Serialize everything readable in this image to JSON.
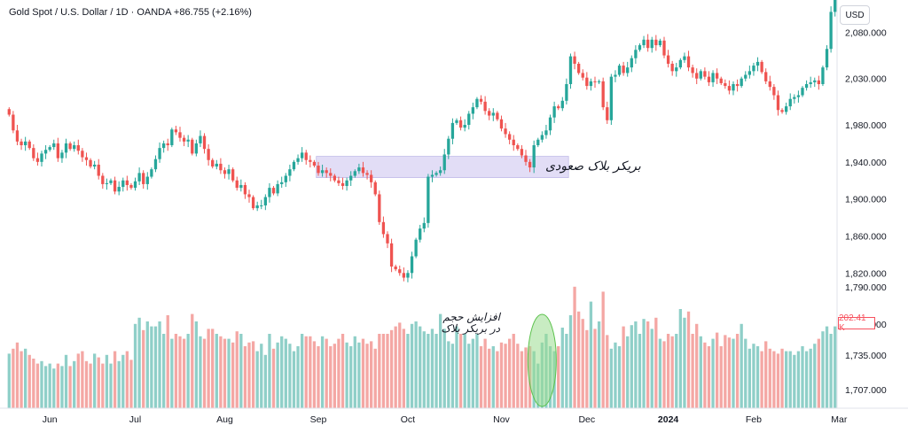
{
  "header": {
    "symbol": "Gold Spot / U.S. Dollar",
    "interval": "1D",
    "source": "OANDA",
    "change": "+86.755 (+2.16%)"
  },
  "currency_label": "USD",
  "volume_badge": "202.41 K",
  "annotations": {
    "breakout": "بریکر بلاک صعودی",
    "volume_line1": "افزایش حجم",
    "volume_line2": "در بریکر بلاک"
  },
  "colors": {
    "up": "#26a69a",
    "down": "#ef5350",
    "up_volume": "#8fcfc8",
    "down_volume": "#f4a7a4",
    "zone": "#ddd8f5",
    "zone_border": "#b8b0e6",
    "highlight_ellipse": "#9bdc8f"
  },
  "chart_data": {
    "type": "candlestick",
    "price_axis": {
      "ticks": [
        "2,080.000",
        "2,030.000",
        "1,980.000",
        "1,940.000",
        "1,900.000",
        "1,860.000",
        "1,820.000"
      ],
      "tick_values": [
        2080,
        2030,
        1980,
        1940,
        1900,
        1860,
        1820
      ],
      "ylim": [
        1808,
        2125
      ]
    },
    "volume_axis": {
      "ticks": [
        "1,790.000",
        "1,760.000",
        "1,735.000",
        "1,707.000"
      ],
      "tick_values": [
        1790,
        1760,
        1735,
        1707
      ]
    },
    "x_ticks": [
      "Jun",
      "Jul",
      "Aug",
      "Sep",
      "Oct",
      "Nov",
      "Dec",
      "2024",
      "Feb",
      "Mar"
    ],
    "x_tick_index": [
      10,
      31,
      53,
      76,
      98,
      121,
      142,
      162,
      183,
      204
    ],
    "breaker_block_zone": {
      "price_low": 1923,
      "price_high": 1946,
      "start_index": 76,
      "end_index": 137
    },
    "close_series": [
      1991,
      1974,
      1962,
      1958,
      1962,
      1955,
      1944,
      1940,
      1949,
      1953,
      1956,
      1960,
      1944,
      1950,
      1960,
      1954,
      1958,
      1952,
      1945,
      1942,
      1935,
      1937,
      1925,
      1916,
      1917,
      1920,
      1908,
      1913,
      1920,
      1915,
      1912,
      1919,
      1928,
      1916,
      1924,
      1932,
      1943,
      1955,
      1960,
      1958,
      1975,
      1972,
      1966,
      1962,
      1964,
      1949,
      1960,
      1968,
      1954,
      1942,
      1935,
      1938,
      1931,
      1927,
      1932,
      1920,
      1912,
      1915,
      1905,
      1902,
      1890,
      1893,
      1893,
      1902,
      1912,
      1906,
      1916,
      1918,
      1925,
      1932,
      1940,
      1944,
      1950,
      1942,
      1940,
      1936,
      1928,
      1931,
      1928,
      1925,
      1920,
      1917,
      1914,
      1920,
      1925,
      1930,
      1934,
      1928,
      1926,
      1918,
      1905,
      1875,
      1862,
      1852,
      1827,
      1824,
      1820,
      1815,
      1820,
      1838,
      1856,
      1868,
      1874,
      1924,
      1926,
      1928,
      1931,
      1948,
      1965,
      1982,
      1985,
      1977,
      1980,
      1992,
      1999,
      2008,
      2005,
      1995,
      1990,
      1993,
      1986,
      1976,
      1970,
      1964,
      1958,
      1954,
      1947,
      1940,
      1934,
      1958,
      1964,
      1969,
      1974,
      1988,
      2000,
      1998,
      2006,
      2024,
      2054,
      2046,
      2036,
      2031,
      2022,
      2027,
      2026,
      2027,
      1999,
      1985,
      2032,
      2034,
      2044,
      2036,
      2042,
      2052,
      2061,
      2066,
      2072,
      2063,
      2072,
      2066,
      2071,
      2055,
      2046,
      2038,
      2042,
      2050,
      2054,
      2042,
      2036,
      2030,
      2038,
      2032,
      2026,
      2036,
      2030,
      2025,
      2022,
      2017,
      2024,
      2022,
      2030,
      2034,
      2038,
      2044,
      2048,
      2037,
      2027,
      2021,
      2012,
      1996,
      1994,
      2000,
      2008,
      2010,
      2012,
      2020,
      2024,
      2026,
      2028,
      2024,
      2042,
      2062,
      2102,
      2125
    ],
    "volume_series": [
      1736,
      1740,
      1745,
      1738,
      1740,
      1735,
      1732,
      1728,
      1730,
      1726,
      1728,
      1724,
      1728,
      1726,
      1735,
      1726,
      1730,
      1736,
      1738,
      1730,
      1728,
      1736,
      1733,
      1728,
      1735,
      1728,
      1738,
      1730,
      1735,
      1738,
      1731,
      1760,
      1765,
      1755,
      1762,
      1758,
      1758,
      1762,
      1752,
      1767,
      1748,
      1752,
      1750,
      1748,
      1752,
      1768,
      1762,
      1750,
      1748,
      1756,
      1756,
      1752,
      1750,
      1748,
      1748,
      1745,
      1754,
      1752,
      1742,
      1745,
      1746,
      1738,
      1744,
      1735,
      1752,
      1740,
      1745,
      1750,
      1748,
      1744,
      1738,
      1742,
      1752,
      1750,
      1750,
      1746,
      1742,
      1750,
      1748,
      1742,
      1744,
      1748,
      1752,
      1745,
      1742,
      1750,
      1745,
      1748,
      1744,
      1746,
      1740,
      1752,
      1752,
      1752,
      1755,
      1758,
      1761,
      1756,
      1752,
      1760,
      1762,
      1758,
      1754,
      1752,
      1756,
      1752,
      1768,
      1756,
      1746,
      1744,
      1758,
      1752,
      1752,
      1744,
      1748,
      1752,
      1742,
      1748,
      1740,
      1742,
      1738,
      1745,
      1744,
      1748,
      1752,
      1744,
      1738,
      1741,
      1742,
      1738,
      1728,
      1745,
      1752,
      1742,
      1738,
      1742,
      1757,
      1752,
      1767,
      1790,
      1770,
      1764,
      1755,
      1778,
      1756,
      1762,
      1786,
      1751,
      1740,
      1745,
      1742,
      1758,
      1750,
      1759,
      1762,
      1752,
      1764,
      1762,
      1756,
      1765,
      1748,
      1746,
      1752,
      1750,
      1752,
      1772,
      1765,
      1770,
      1752,
      1760,
      1750,
      1745,
      1742,
      1748,
      1753,
      1742,
      1751,
      1749,
      1748,
      1752,
      1760,
      1748,
      1740,
      1744,
      1742,
      1738,
      1746,
      1740,
      1738,
      1736,
      1740,
      1738,
      1738,
      1735,
      1738,
      1742,
      1738,
      1740,
      1744,
      1748,
      1754,
      1758,
      1752,
      1758,
      1756,
      1762,
      1752,
      1752,
      1748,
      1745,
      1742,
      1738,
      1745,
      1742,
      1765
    ]
  }
}
